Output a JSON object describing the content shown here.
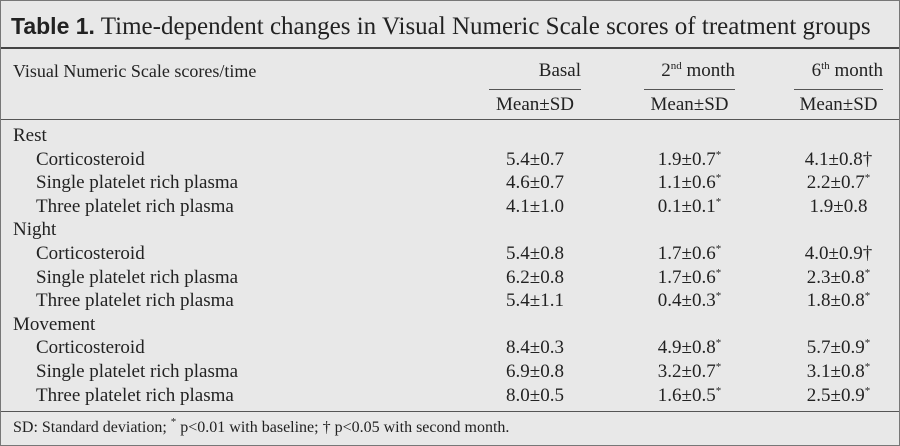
{
  "title": {
    "label": "Table 1.",
    "text": "Time-dependent changes in Visual Numeric Scale scores of treatment groups"
  },
  "header": {
    "first": "Visual Numeric Scale scores/time",
    "columns": [
      {
        "text": "Basal",
        "sub": "Mean±SD"
      },
      {
        "text": "2",
        "sup": "nd",
        "rest": " month",
        "sub": "Mean±SD"
      },
      {
        "text": "6",
        "sup": "th",
        "rest": " month",
        "sub": "Mean±SD"
      }
    ]
  },
  "groups": [
    {
      "name": "Rest",
      "rows": [
        {
          "label": "Corticosteroid",
          "cells": [
            {
              "value": "5.4±0.7"
            },
            {
              "value": "1.9±0.7",
              "sup": "*"
            },
            {
              "value": "4.1±0.8†"
            }
          ]
        },
        {
          "label": "Single platelet rich plasma",
          "cells": [
            {
              "value": "4.6±0.7"
            },
            {
              "value": "1.1±0.6",
              "sup": "*"
            },
            {
              "value": "2.2±0.7",
              "sup": "*"
            }
          ]
        },
        {
          "label": "Three platelet rich plasma",
          "cells": [
            {
              "value": "4.1±1.0"
            },
            {
              "value": "0.1±0.1",
              "sup": "*"
            },
            {
              "value": "1.9±0.8"
            }
          ]
        }
      ]
    },
    {
      "name": "Night",
      "rows": [
        {
          "label": "Corticosteroid",
          "cells": [
            {
              "value": "5.4±0.8"
            },
            {
              "value": "1.7±0.6",
              "sup": "*"
            },
            {
              "value": "4.0±0.9†"
            }
          ]
        },
        {
          "label": "Single platelet rich plasma",
          "cells": [
            {
              "value": "6.2±0.8"
            },
            {
              "value": "1.7±0.6",
              "sup": "*"
            },
            {
              "value": "2.3±0.8",
              "sup": "*"
            }
          ]
        },
        {
          "label": "Three platelet rich plasma",
          "cells": [
            {
              "value": "5.4±1.1"
            },
            {
              "value": "0.4±0.3",
              "sup": "*"
            },
            {
              "value": "1.8±0.8",
              "sup": "*"
            }
          ]
        }
      ]
    },
    {
      "name": "Movement",
      "rows": [
        {
          "label": "Corticosteroid",
          "cells": [
            {
              "value": "8.4±0.3"
            },
            {
              "value": "4.9±0.8",
              "sup": "*"
            },
            {
              "value": "5.7±0.9",
              "sup": "*"
            }
          ]
        },
        {
          "label": "Single platelet rich plasma",
          "cells": [
            {
              "value": "6.9±0.8"
            },
            {
              "value": "3.2±0.7",
              "sup": "*"
            },
            {
              "value": "3.1±0.8",
              "sup": "*"
            }
          ]
        },
        {
          "label": "Three platelet rich plasma",
          "cells": [
            {
              "value": "8.0±0.5"
            },
            {
              "value": "1.6±0.5",
              "sup": "*"
            },
            {
              "value": "2.5±0.9",
              "sup": "*"
            }
          ]
        }
      ]
    }
  ],
  "footnote": [
    "SD: Standard deviation; ",
    "*",
    " p<0.01 with baseline; † p<0.05 with second month."
  ]
}
